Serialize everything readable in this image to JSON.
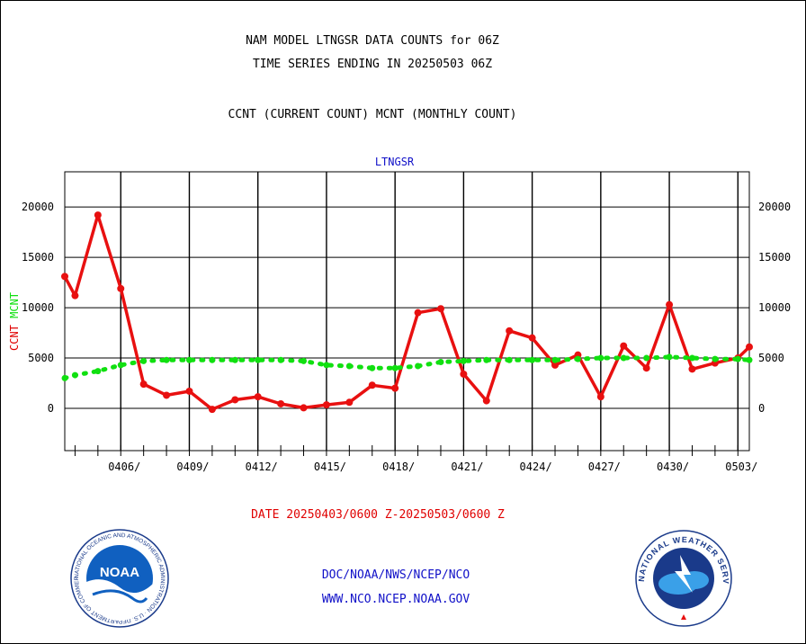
{
  "header": {
    "line1": "NAM MODEL LTNGSR DATA COUNTS for 06Z",
    "line2": "TIME SERIES ENDING IN 20250503 06Z",
    "line3": "CCNT (CURRENT COUNT) MCNT (MONTHLY COUNT)"
  },
  "footer": {
    "date_range": "DATE 20250403/0600 Z-20250503/0600 Z",
    "link1": "DOC/NOAA/NWS/NCEP/NCO",
    "link2": "WWW.NCO.NCEP.NOAA.GOV",
    "noaa_logo_text": "NOAA",
    "noaa_logo_ring": "NATIONAL OCEANIC AND ATMOSPHERIC ADMINISTRATION · U.S. DEPARTMENT OF COMMERCE",
    "nws_logo_ring": "NATIONAL WEATHER SERVICE"
  },
  "colors": {
    "ccnt": "#e81010",
    "mcnt": "#10e010",
    "title_blue": "#1010c8",
    "ccnt_label": "#e00000"
  },
  "chart_data": {
    "type": "line",
    "title": "LTNGSR",
    "ylabel_ccnt": "CCNT",
    "ylabel_mcnt": "MCNT",
    "ylim": [
      -4200,
      23500
    ],
    "yticks": [
      0,
      5000,
      10000,
      15000,
      20000
    ],
    "grid": true,
    "x_day_offset_range": [
      0.55,
      30.5
    ],
    "x_tick_labels": [
      {
        "day": 3,
        "label": "0406/"
      },
      {
        "day": 6,
        "label": "0409/"
      },
      {
        "day": 9,
        "label": "0412/"
      },
      {
        "day": 12,
        "label": "0415/"
      },
      {
        "day": 15,
        "label": "0418/"
      },
      {
        "day": 18,
        "label": "0421/"
      },
      {
        "day": 21,
        "label": "0424/"
      },
      {
        "day": 24,
        "label": "0427/"
      },
      {
        "day": 27,
        "label": "0430/"
      },
      {
        "day": 30,
        "label": "0503/"
      }
    ],
    "series": [
      {
        "name": "CCNT",
        "color": "#e81010",
        "style": "solid",
        "x": [
          0.55,
          1,
          2,
          3,
          4,
          5,
          6,
          7,
          8,
          9,
          10,
          11,
          12,
          13,
          14,
          15,
          16,
          17,
          18,
          19,
          20,
          21,
          22,
          23,
          24,
          25,
          26,
          27,
          28,
          29,
          30,
          30.5
        ],
        "values": [
          13100,
          11200,
          19200,
          11900,
          2400,
          1300,
          1700,
          -100,
          850,
          1150,
          450,
          50,
          350,
          600,
          2300,
          2000,
          9500,
          9900,
          3400,
          750,
          7700,
          7000,
          4300,
          5300,
          1150,
          6200,
          4000,
          10300,
          3900,
          4500,
          5000,
          6100
        ]
      },
      {
        "name": "MCNT",
        "color": "#10e010",
        "style": "dotted",
        "x": [
          0.55,
          1,
          2,
          3,
          4,
          5,
          6,
          7,
          8,
          9,
          10,
          11,
          12,
          13,
          14,
          15,
          16,
          17,
          18,
          19,
          20,
          21,
          22,
          23,
          24,
          25,
          26,
          27,
          28,
          29,
          30,
          30.5
        ],
        "values": [
          3000,
          3300,
          3700,
          4300,
          4700,
          4800,
          4800,
          4800,
          4800,
          4800,
          4800,
          4700,
          4300,
          4200,
          4000,
          4000,
          4200,
          4600,
          4700,
          4800,
          4800,
          4800,
          4800,
          4900,
          5000,
          5000,
          5000,
          5100,
          5000,
          4900,
          4900,
          4800
        ]
      }
    ]
  }
}
